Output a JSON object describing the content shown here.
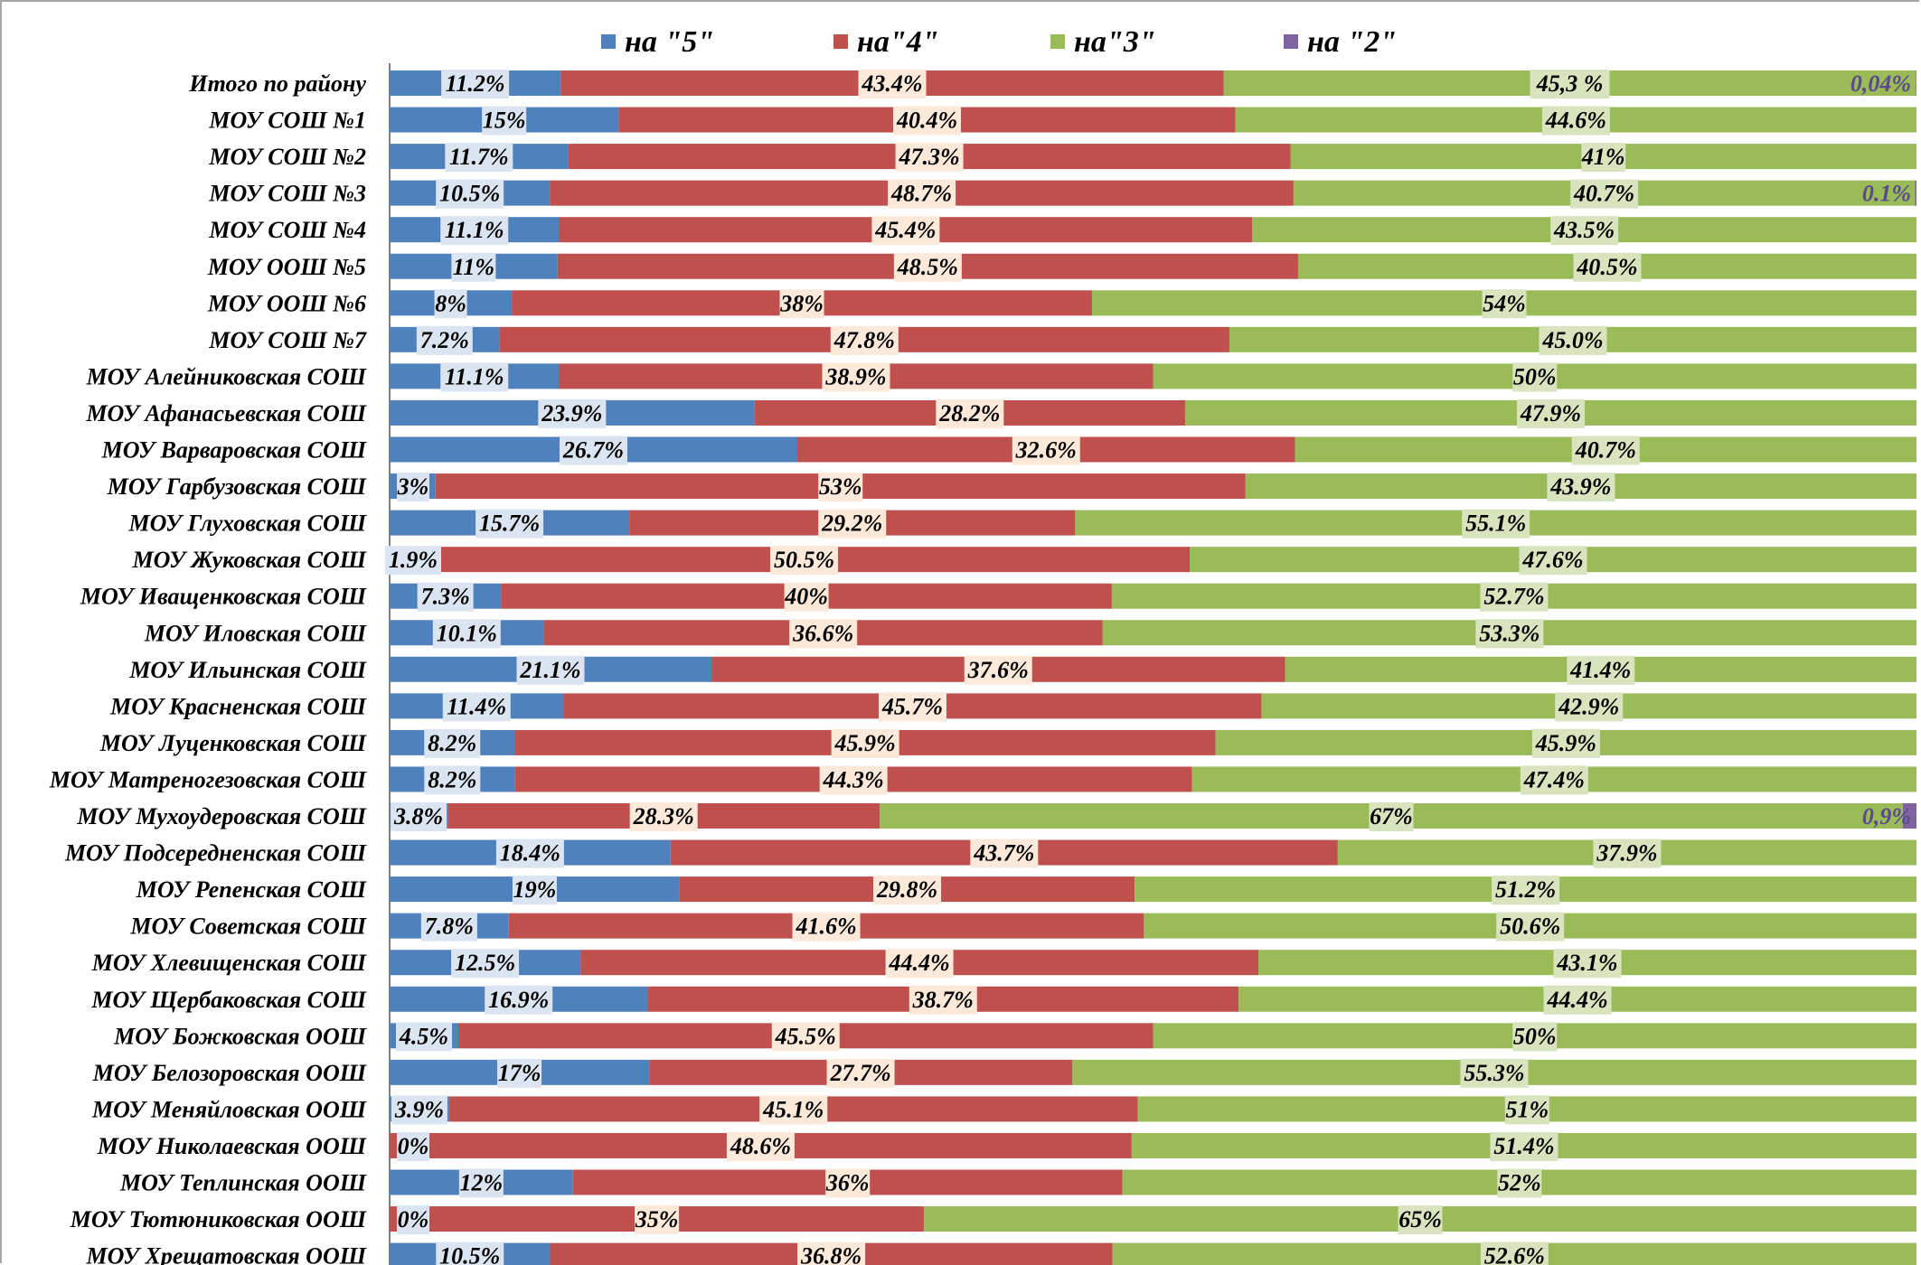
{
  "chart_data": {
    "type": "bar",
    "orientation": "horizontal",
    "stacked": "percent",
    "legend_position": "top",
    "grid": false,
    "colors": {
      "na5": "#4f81bd",
      "na4": "#c0504d",
      "na3": "#9bbb59",
      "na2": "#8064a2"
    },
    "series": [
      {
        "name": "на \"5\"",
        "color": "#4f81bd"
      },
      {
        "name": "на\"4\"",
        "color": "#c0504d"
      },
      {
        "name": "на\"3\"",
        "color": "#9bbb59"
      },
      {
        "name": "на \"2\"",
        "color": "#8064a2"
      }
    ],
    "rows": [
      {
        "category": "Итого по району",
        "values": [
          11.2,
          43.4,
          45.3,
          0.04
        ],
        "labels": [
          "11.2%",
          "43.4%",
          "45,3 %",
          "0,04%"
        ]
      },
      {
        "category": "МОУ СОШ №1",
        "values": [
          15,
          40.4,
          44.6,
          0
        ],
        "labels": [
          "15%",
          "40.4%",
          "44.6%",
          ""
        ]
      },
      {
        "category": "МОУ СОШ №2",
        "values": [
          11.7,
          47.3,
          41,
          0
        ],
        "labels": [
          "11.7%",
          "47.3%",
          "41%",
          ""
        ]
      },
      {
        "category": "МОУ СОШ №3",
        "values": [
          10.5,
          48.7,
          40.7,
          0.1
        ],
        "labels": [
          "10.5%",
          "48.7%",
          "40.7%",
          "0.1%"
        ]
      },
      {
        "category": "МОУ СОШ №4",
        "values": [
          11.1,
          45.4,
          43.5,
          0
        ],
        "labels": [
          "11.1%",
          "45.4%",
          "43.5%",
          ""
        ]
      },
      {
        "category": "МОУ ООШ №5",
        "values": [
          11,
          48.5,
          40.5,
          0
        ],
        "labels": [
          "11%",
          "48.5%",
          "40.5%",
          ""
        ]
      },
      {
        "category": "МОУ ООШ №6",
        "values": [
          8,
          38,
          54,
          0
        ],
        "labels": [
          "8%",
          "38%",
          "54%",
          ""
        ]
      },
      {
        "category": "МОУ СОШ №7",
        "values": [
          7.2,
          47.8,
          45.0,
          0
        ],
        "labels": [
          "7.2%",
          "47.8%",
          "45.0%",
          ""
        ]
      },
      {
        "category": "МОУ Алейниковская СОШ",
        "values": [
          11.1,
          38.9,
          50,
          0
        ],
        "labels": [
          "11.1%",
          "38.9%",
          "50%",
          ""
        ]
      },
      {
        "category": "МОУ Афанасьевская СОШ",
        "values": [
          23.9,
          28.2,
          47.9,
          0
        ],
        "labels": [
          "23.9%",
          "28.2%",
          "47.9%",
          ""
        ]
      },
      {
        "category": "МОУ Варваровская СОШ",
        "values": [
          26.7,
          32.6,
          40.7,
          0
        ],
        "labels": [
          "26.7%",
          "32.6%",
          "40.7%",
          ""
        ]
      },
      {
        "category": "МОУ Гарбузовская СОШ",
        "values": [
          3,
          53,
          43.9,
          0
        ],
        "labels": [
          "3%",
          "53%",
          "43.9%",
          ""
        ]
      },
      {
        "category": "МОУ Глуховская СОШ",
        "values": [
          15.7,
          29.2,
          55.1,
          0
        ],
        "labels": [
          "15.7%",
          "29.2%",
          "55.1%",
          ""
        ]
      },
      {
        "category": "МОУ Жуковская СОШ",
        "values": [
          1.9,
          50.5,
          47.6,
          0
        ],
        "labels": [
          "1.9%",
          "50.5%",
          "47.6%",
          ""
        ]
      },
      {
        "category": "МОУ Иващенковская СОШ",
        "values": [
          7.3,
          40,
          52.7,
          0
        ],
        "labels": [
          "7.3%",
          "40%",
          "52.7%",
          ""
        ]
      },
      {
        "category": "МОУ Иловская СОШ",
        "values": [
          10.1,
          36.6,
          53.3,
          0
        ],
        "labels": [
          "10.1%",
          "36.6%",
          "53.3%",
          ""
        ]
      },
      {
        "category": "МОУ Ильинская СОШ",
        "values": [
          21.1,
          37.6,
          41.4,
          0
        ],
        "labels": [
          "21.1%",
          "37.6%",
          "41.4%",
          ""
        ]
      },
      {
        "category": "МОУ Красненская СОШ",
        "values": [
          11.4,
          45.7,
          42.9,
          0
        ],
        "labels": [
          "11.4%",
          "45.7%",
          "42.9%",
          ""
        ]
      },
      {
        "category": "МОУ Луценковская СОШ",
        "values": [
          8.2,
          45.9,
          45.9,
          0
        ],
        "labels": [
          "8.2%",
          "45.9%",
          "45.9%",
          ""
        ]
      },
      {
        "category": "МОУ Матреногезовская СОШ",
        "values": [
          8.2,
          44.3,
          47.4,
          0
        ],
        "labels": [
          "8.2%",
          "44.3%",
          "47.4%",
          ""
        ]
      },
      {
        "category": "МОУ Мухоудеровская СОШ",
        "values": [
          3.8,
          28.3,
          67,
          0.9
        ],
        "labels": [
          "3.8%",
          "28.3%",
          "67%",
          "0,9%"
        ]
      },
      {
        "category": "МОУ Подсередненская СОШ",
        "values": [
          18.4,
          43.7,
          37.9,
          0
        ],
        "labels": [
          "18.4%",
          "43.7%",
          "37.9%",
          ""
        ]
      },
      {
        "category": "МОУ Репенская СОШ",
        "values": [
          19,
          29.8,
          51.2,
          0
        ],
        "labels": [
          "19%",
          "29.8%",
          "51.2%",
          ""
        ]
      },
      {
        "category": "МОУ Советская СОШ",
        "values": [
          7.8,
          41.6,
          50.6,
          0
        ],
        "labels": [
          "7.8%",
          "41.6%",
          "50.6%",
          ""
        ]
      },
      {
        "category": "МОУ Хлевищенская СОШ",
        "values": [
          12.5,
          44.4,
          43.1,
          0
        ],
        "labels": [
          "12.5%",
          "44.4%",
          "43.1%",
          ""
        ]
      },
      {
        "category": "МОУ Щербаковская СОШ",
        "values": [
          16.9,
          38.7,
          44.4,
          0
        ],
        "labels": [
          "16.9%",
          "38.7%",
          "44.4%",
          ""
        ]
      },
      {
        "category": "МОУ Божковская ООШ",
        "values": [
          4.5,
          45.5,
          50,
          0
        ],
        "labels": [
          "4.5%",
          "45.5%",
          "50%",
          ""
        ]
      },
      {
        "category": "МОУ Белозоровская ООШ",
        "values": [
          17,
          27.7,
          55.3,
          0
        ],
        "labels": [
          "17%",
          "27.7%",
          "55.3%",
          ""
        ]
      },
      {
        "category": "МОУ Меняйловская ООШ",
        "values": [
          3.9,
          45.1,
          51,
          0
        ],
        "labels": [
          "3.9%",
          "45.1%",
          "51%",
          ""
        ]
      },
      {
        "category": "МОУ Николаевская ООШ",
        "values": [
          0,
          48.6,
          51.4,
          0
        ],
        "labels": [
          "0%",
          "48.6%",
          "51.4%",
          ""
        ]
      },
      {
        "category": "МОУ Теплинская ООШ",
        "values": [
          12,
          36,
          52,
          0
        ],
        "labels": [
          "12%",
          "36%",
          "52%",
          ""
        ]
      },
      {
        "category": "МОУ Тютюниковская ООШ",
        "values": [
          0,
          35,
          65,
          0
        ],
        "labels": [
          "0%",
          "35%",
          "65%",
          ""
        ]
      },
      {
        "category": "МОУ Хрещатовская ООШ",
        "values": [
          10.5,
          36.8,
          52.6,
          0
        ],
        "labels": [
          "10.5%",
          "36.8%",
          "52.6%",
          ""
        ]
      }
    ]
  }
}
